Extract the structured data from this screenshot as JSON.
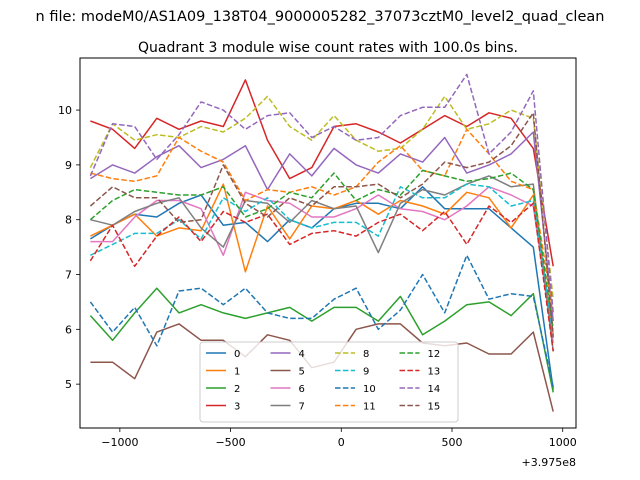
{
  "figure": {
    "suptitle": "n file: modeM0/AS1A09_138T04_9000005282_37073cztM0_level2_quad_clean",
    "offset_label": "+3.975e8"
  },
  "chart_data": {
    "type": "line",
    "title": "Quadrant 3 module wise count rates with 100.0s bins.",
    "xlabel": "",
    "ylabel": "",
    "xlim": [
      -1180,
      1060
    ],
    "ylim": [
      4.2,
      10.95
    ],
    "xticks": [
      -1000,
      -500,
      0,
      500,
      1000
    ],
    "xtick_labels": [
      "−1000",
      "−500",
      "0",
      "500",
      "1000"
    ],
    "yticks": [
      5,
      6,
      7,
      8,
      9,
      10
    ],
    "ytick_labels": [
      "5",
      "6",
      "7",
      "8",
      "9",
      "10"
    ],
    "grid": false,
    "legend_position": "lower-center",
    "legend_columns": 4,
    "x": [
      -1133,
      -1033,
      -933,
      -833,
      -733,
      -633,
      -533,
      -433,
      -333,
      -233,
      -133,
      -33,
      67,
      167,
      267,
      367,
      467,
      567,
      667,
      767,
      867,
      957
    ],
    "series": [
      {
        "name": "0",
        "color": "#1f77b4",
        "dash": "solid",
        "values": [
          7.65,
          7.9,
          8.1,
          8.05,
          8.3,
          8.45,
          7.9,
          7.95,
          7.6,
          8.0,
          7.85,
          8.2,
          8.3,
          8.3,
          8.2,
          8.6,
          8.2,
          8.2,
          8.2,
          7.85,
          7.5,
          4.9
        ]
      },
      {
        "name": "1",
        "color": "#ff7f0e",
        "dash": "solid",
        "values": [
          7.7,
          7.9,
          8.1,
          7.7,
          7.85,
          7.8,
          8.65,
          7.05,
          8.25,
          7.65,
          8.25,
          8.2,
          8.35,
          8.1,
          8.35,
          8.25,
          8.1,
          8.5,
          8.4,
          7.85,
          8.45,
          5.9
        ]
      },
      {
        "name": "2",
        "color": "#2ca02c",
        "dash": "solid",
        "values": [
          6.25,
          5.8,
          6.3,
          6.75,
          6.3,
          6.45,
          6.3,
          6.2,
          6.3,
          6.4,
          6.15,
          6.4,
          6.4,
          6.15,
          6.6,
          5.9,
          6.15,
          6.45,
          6.5,
          6.25,
          6.65,
          4.85
        ]
      },
      {
        "name": "3",
        "color": "#d62728",
        "dash": "solid",
        "values": [
          9.8,
          9.65,
          9.3,
          9.85,
          9.65,
          9.8,
          9.7,
          10.55,
          9.45,
          8.75,
          8.95,
          9.7,
          9.75,
          9.6,
          9.4,
          9.65,
          9.9,
          9.7,
          9.95,
          9.85,
          9.3,
          7.15
        ]
      },
      {
        "name": "4",
        "color": "#9467bd",
        "dash": "solid",
        "values": [
          8.75,
          9.0,
          8.85,
          9.15,
          9.35,
          8.95,
          9.1,
          9.35,
          8.55,
          9.2,
          8.8,
          9.3,
          9.0,
          8.85,
          9.2,
          9.05,
          9.5,
          8.85,
          9.0,
          9.2,
          9.6,
          6.15
        ]
      },
      {
        "name": "5",
        "color": "#8c564b",
        "dash": "solid",
        "values": [
          5.4,
          5.4,
          5.1,
          5.95,
          6.1,
          5.8,
          5.8,
          5.5,
          5.9,
          5.8,
          5.3,
          5.4,
          6.0,
          6.1,
          6.1,
          5.75,
          5.7,
          5.75,
          5.55,
          5.55,
          5.95,
          4.5
        ]
      },
      {
        "name": "6",
        "color": "#e377c2",
        "dash": "solid",
        "values": [
          7.6,
          7.6,
          8.05,
          8.35,
          8.35,
          8.2,
          7.35,
          8.5,
          8.35,
          8.3,
          8.05,
          8.05,
          8.2,
          8.45,
          8.2,
          8.15,
          8.0,
          8.25,
          8.6,
          8.45,
          8.25,
          5.75
        ]
      },
      {
        "name": "7",
        "color": "#7f7f7f",
        "dash": "solid",
        "values": [
          8.0,
          7.9,
          8.15,
          8.3,
          8.4,
          7.85,
          7.5,
          8.35,
          8.3,
          7.95,
          8.35,
          8.2,
          8.25,
          7.4,
          8.3,
          8.55,
          8.45,
          8.65,
          8.8,
          8.6,
          8.65,
          5.6
        ]
      },
      {
        "name": "8",
        "color": "#bcbd22",
        "dash": "dashed",
        "values": [
          8.95,
          9.75,
          9.45,
          9.55,
          9.5,
          9.7,
          9.6,
          9.85,
          10.25,
          9.7,
          9.45,
          9.9,
          9.45,
          9.25,
          9.3,
          9.65,
          10.25,
          9.65,
          9.75,
          10.0,
          9.85,
          6.55
        ]
      },
      {
        "name": "9",
        "color": "#17becf",
        "dash": "dashed",
        "values": [
          7.35,
          7.55,
          7.75,
          7.75,
          8.0,
          7.65,
          8.4,
          8.15,
          8.4,
          8.0,
          7.85,
          7.95,
          7.95,
          7.7,
          8.6,
          8.4,
          8.4,
          8.65,
          8.6,
          8.25,
          8.35,
          5.9
        ]
      },
      {
        "name": "10",
        "color": "#1f77b4",
        "dash": "dashed",
        "values": [
          6.5,
          5.95,
          6.4,
          5.7,
          6.7,
          6.75,
          6.45,
          6.75,
          6.3,
          6.2,
          6.2,
          6.55,
          6.75,
          6.0,
          6.35,
          7.0,
          6.3,
          7.35,
          6.55,
          6.65,
          6.6,
          4.95
        ]
      },
      {
        "name": "11",
        "color": "#ff7f0e",
        "dash": "dashed",
        "values": [
          8.85,
          8.75,
          8.7,
          8.8,
          9.5,
          9.25,
          9.05,
          8.35,
          8.55,
          8.5,
          8.6,
          8.45,
          8.6,
          9.05,
          9.35,
          8.9,
          8.8,
          9.65,
          9.2,
          8.7,
          8.55,
          6.3
        ]
      },
      {
        "name": "12",
        "color": "#2ca02c",
        "dash": "dashed",
        "values": [
          8.0,
          8.35,
          8.55,
          8.5,
          8.45,
          8.45,
          8.6,
          8.05,
          8.2,
          8.5,
          8.4,
          8.85,
          8.35,
          8.55,
          8.45,
          8.9,
          8.8,
          8.7,
          8.75,
          8.85,
          8.55,
          6.0
        ]
      },
      {
        "name": "13",
        "color": "#d62728",
        "dash": "dashed",
        "values": [
          7.25,
          7.9,
          7.15,
          7.7,
          8.05,
          7.6,
          8.15,
          7.95,
          8.1,
          7.55,
          7.75,
          7.8,
          7.7,
          7.95,
          8.1,
          7.8,
          8.15,
          7.55,
          8.25,
          7.95,
          8.3,
          5.6
        ]
      },
      {
        "name": "14",
        "color": "#9467bd",
        "dash": "dashed",
        "values": [
          8.8,
          9.75,
          9.7,
          9.1,
          9.55,
          10.15,
          10.0,
          9.65,
          9.9,
          9.95,
          9.5,
          9.7,
          9.45,
          9.5,
          9.9,
          10.05,
          10.05,
          10.65,
          9.2,
          9.6,
          10.35,
          6.3
        ]
      },
      {
        "name": "15",
        "color": "#8c564b",
        "dash": "dashed",
        "values": [
          8.25,
          8.6,
          8.4,
          8.4,
          7.95,
          8.0,
          9.0,
          8.3,
          8.05,
          8.4,
          8.25,
          8.6,
          8.6,
          8.65,
          8.4,
          8.65,
          9.05,
          8.95,
          9.05,
          9.35,
          9.95,
          5.85
        ]
      }
    ]
  }
}
